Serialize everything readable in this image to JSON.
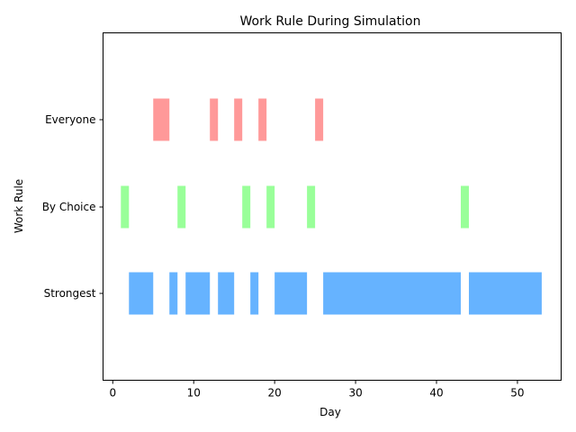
{
  "chart_data": {
    "type": "bar",
    "orientation": "horizontal-ranges",
    "title": "Work Rule During Simulation",
    "xlabel": "Day",
    "ylabel": "Work Rule",
    "xlim": [
      -1.2,
      55.4
    ],
    "x_ticks": [
      0,
      10,
      20,
      30,
      40,
      50
    ],
    "categories": [
      "Strongest",
      "By Choice",
      "Everyone"
    ],
    "grid": false,
    "legend": "none",
    "series": [
      {
        "category": "Strongest",
        "color": "#66b3ff",
        "ranges": [
          [
            2,
            5
          ],
          [
            7,
            8
          ],
          [
            9,
            12
          ],
          [
            13,
            15
          ],
          [
            17,
            18
          ],
          [
            20,
            24
          ],
          [
            26,
            43
          ],
          [
            44,
            53
          ]
        ]
      },
      {
        "category": "By Choice",
        "color": "#99ff99",
        "ranges": [
          [
            1,
            2
          ],
          [
            8,
            9
          ],
          [
            16,
            17
          ],
          [
            19,
            20
          ],
          [
            24,
            25
          ],
          [
            43,
            44
          ]
        ]
      },
      {
        "category": "Everyone",
        "color": "#ff9999",
        "ranges": [
          [
            5,
            7
          ],
          [
            12,
            13
          ],
          [
            15,
            16
          ],
          [
            18,
            19
          ],
          [
            25,
            26
          ]
        ]
      }
    ]
  }
}
